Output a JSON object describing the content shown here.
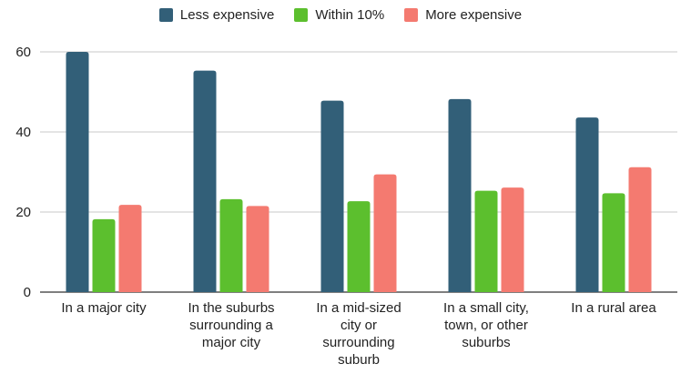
{
  "chart_data": {
    "type": "bar",
    "categories": [
      "In a major city",
      "In the suburbs surrounding a major city",
      "In a mid-sized city or surrounding suburb",
      "In a small city, town, or other suburbs",
      "In a rural area"
    ],
    "category_lines": [
      [
        "In a major city"
      ],
      [
        "In the suburbs",
        "surrounding a",
        "major city"
      ],
      [
        "In a mid-sized",
        "city or",
        "surrounding",
        "suburb"
      ],
      [
        "In a small city,",
        "town, or other",
        "suburbs"
      ],
      [
        "In a rural area"
      ]
    ],
    "series": [
      {
        "name": "Less expensive",
        "color": "#325f78",
        "values": [
          60,
          55.3,
          47.8,
          48.2,
          43.6
        ]
      },
      {
        "name": "Within 10%",
        "color": "#5cbf2e",
        "values": [
          18.2,
          23.2,
          22.7,
          25.3,
          24.7
        ]
      },
      {
        "name": "More expensive",
        "color": "#f47a70",
        "values": [
          21.8,
          21.5,
          29.4,
          26.1,
          31.2
        ]
      }
    ],
    "yticks": [
      0,
      20,
      40,
      60
    ],
    "ylim": [
      0,
      60
    ],
    "grid": true,
    "legend_position": "top-center",
    "title": "",
    "xlabel": "",
    "ylabel": ""
  }
}
